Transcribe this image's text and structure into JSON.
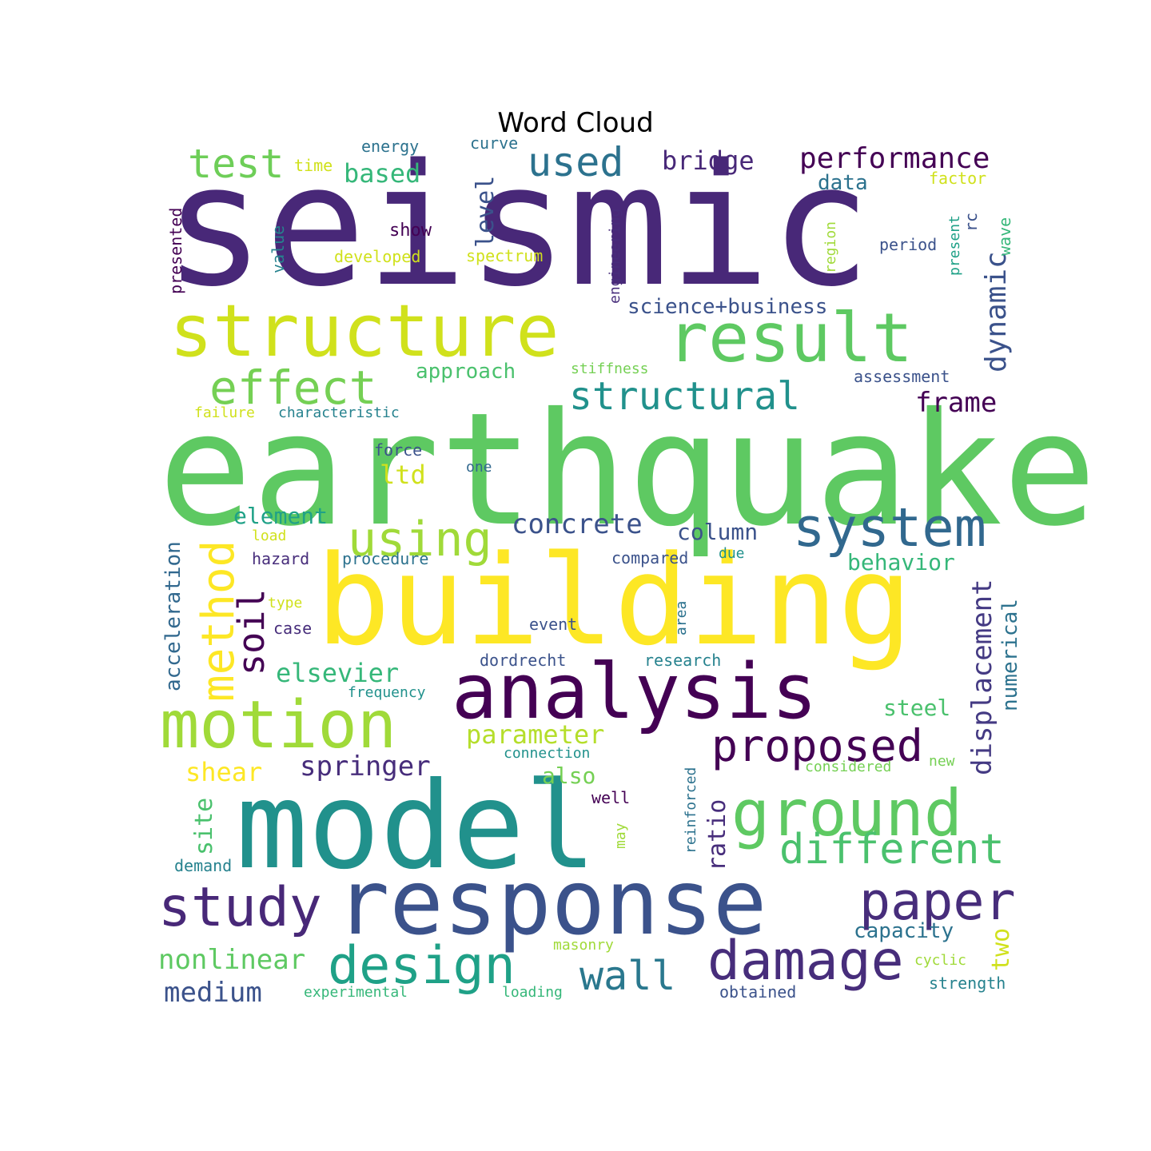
{
  "title": "Word Cloud",
  "palette": [
    "#440154",
    "#482878",
    "#3e4989",
    "#31688e",
    "#26828e",
    "#1f9e89",
    "#35b779",
    "#6ece58",
    "#b5de2b",
    "#fde725"
  ],
  "words": [
    {
      "text": "seismic",
      "color": "#482878"
    },
    {
      "text": "earthquake",
      "color": "#5ec962"
    },
    {
      "text": "building",
      "color": "#fde725"
    },
    {
      "text": "model",
      "color": "#21918c"
    },
    {
      "text": "response",
      "color": "#3b528b"
    },
    {
      "text": "analysis",
      "color": "#440154"
    },
    {
      "text": "structure",
      "color": "#d0e11c"
    },
    {
      "text": "result",
      "color": "#5ec962"
    },
    {
      "text": "motion",
      "color": "#a0da39"
    },
    {
      "text": "ground",
      "color": "#5ec962"
    },
    {
      "text": "system",
      "color": "#31688e"
    },
    {
      "text": "study",
      "color": "#482878"
    },
    {
      "text": "design",
      "color": "#1fa187"
    },
    {
      "text": "damage",
      "color": "#472d7b"
    },
    {
      "text": "paper",
      "color": "#472d7b"
    },
    {
      "text": "effect",
      "color": "#75d054"
    },
    {
      "text": "using",
      "color": "#a0da39"
    },
    {
      "text": "proposed",
      "color": "#440154"
    },
    {
      "text": "method",
      "color": "#fde725"
    },
    {
      "text": "different",
      "color": "#4ac16d"
    },
    {
      "text": "structural",
      "color": "#21918c"
    },
    {
      "text": "test",
      "color": "#6ece58"
    },
    {
      "text": "used",
      "color": "#2c728e"
    },
    {
      "text": "performance",
      "color": "#440154"
    },
    {
      "text": "soil",
      "color": "#440154"
    },
    {
      "text": "wall",
      "color": "#2a788e"
    },
    {
      "text": "dynamic",
      "color": "#3b528b"
    },
    {
      "text": "displacement",
      "color": "#443a83"
    },
    {
      "text": "concrete",
      "color": "#3b528b"
    },
    {
      "text": "springer",
      "color": "#472d7b"
    },
    {
      "text": "nonlinear",
      "color": "#5ec962"
    },
    {
      "text": "frame",
      "color": "#440154"
    },
    {
      "text": "elsevier",
      "color": "#35b779"
    },
    {
      "text": "bridge",
      "color": "#482878"
    },
    {
      "text": "medium",
      "color": "#3b528b"
    },
    {
      "text": "acceleration",
      "color": "#31688e"
    },
    {
      "text": "parameter",
      "color": "#b5de2b"
    },
    {
      "text": "shear",
      "color": "#fde725"
    },
    {
      "text": "level",
      "color": "#3b528b"
    },
    {
      "text": "based",
      "color": "#35b779"
    },
    {
      "text": "ratio",
      "color": "#472d7b"
    },
    {
      "text": "site",
      "color": "#4ac16d"
    },
    {
      "text": "element",
      "color": "#1fa187"
    },
    {
      "text": "capacity",
      "color": "#2c728e"
    },
    {
      "text": "numerical",
      "color": "#2c728e"
    },
    {
      "text": "approach",
      "color": "#4ac16d"
    },
    {
      "text": "science+business",
      "color": "#3b528b"
    },
    {
      "text": "column",
      "color": "#3b528b"
    },
    {
      "text": "behavior",
      "color": "#35b779"
    },
    {
      "text": "two",
      "color": "#d0e11c"
    },
    {
      "text": "data",
      "color": "#2c728e"
    },
    {
      "text": "steel",
      "color": "#4ac16d"
    },
    {
      "text": "ltd",
      "color": "#d0e11c"
    },
    {
      "text": "also",
      "color": "#75d054"
    },
    {
      "text": "engineering",
      "color": "#472d7b"
    },
    {
      "text": "energy",
      "color": "#2c728e"
    },
    {
      "text": "curve",
      "color": "#2c728e"
    },
    {
      "text": "time",
      "color": "#d0e11c"
    },
    {
      "text": "factor",
      "color": "#d0e11c"
    },
    {
      "text": "presented",
      "color": "#440154"
    },
    {
      "text": "value",
      "color": "#26828e"
    },
    {
      "text": "show",
      "color": "#440154"
    },
    {
      "text": "developed",
      "color": "#d0e11c"
    },
    {
      "text": "spectrum",
      "color": "#d0e11c"
    },
    {
      "text": "region",
      "color": "#a0da39"
    },
    {
      "text": "period",
      "color": "#3b528b"
    },
    {
      "text": "rc",
      "color": "#3b528b"
    },
    {
      "text": "present",
      "color": "#1fa187"
    },
    {
      "text": "wave",
      "color": "#35b779"
    },
    {
      "text": "stiffness",
      "color": "#75d054"
    },
    {
      "text": "assessment",
      "color": "#3b528b"
    },
    {
      "text": "failure",
      "color": "#d0e11c"
    },
    {
      "text": "characteristic",
      "color": "#26828e"
    },
    {
      "text": "force",
      "color": "#3b528b"
    },
    {
      "text": "one",
      "color": "#31688e"
    },
    {
      "text": "load",
      "color": "#d0e11c"
    },
    {
      "text": "hazard",
      "color": "#472d7b"
    },
    {
      "text": "procedure",
      "color": "#2c728e"
    },
    {
      "text": "compared",
      "color": "#3b528b"
    },
    {
      "text": "due",
      "color": "#21918c"
    },
    {
      "text": "type",
      "color": "#d0e11c"
    },
    {
      "text": "case",
      "color": "#472d7b"
    },
    {
      "text": "event",
      "color": "#3b528b"
    },
    {
      "text": "area",
      "color": "#2c728e"
    },
    {
      "text": "dordrecht",
      "color": "#3b528b"
    },
    {
      "text": "research",
      "color": "#26828e"
    },
    {
      "text": "frequency",
      "color": "#21918c"
    },
    {
      "text": "connection",
      "color": "#21918c"
    },
    {
      "text": "reinforced",
      "color": "#2c728e"
    },
    {
      "text": "considered",
      "color": "#75d054"
    },
    {
      "text": "new",
      "color": "#75d054"
    },
    {
      "text": "well",
      "color": "#440154"
    },
    {
      "text": "may",
      "color": "#a0da39"
    },
    {
      "text": "demand",
      "color": "#26828e"
    },
    {
      "text": "masonry",
      "color": "#a0da39"
    },
    {
      "text": "cyclic",
      "color": "#a0da39"
    },
    {
      "text": "strength",
      "color": "#26828e"
    },
    {
      "text": "experimental",
      "color": "#35b779"
    },
    {
      "text": "loading",
      "color": "#35b779"
    },
    {
      "text": "obtained",
      "color": "#3b528b"
    }
  ]
}
